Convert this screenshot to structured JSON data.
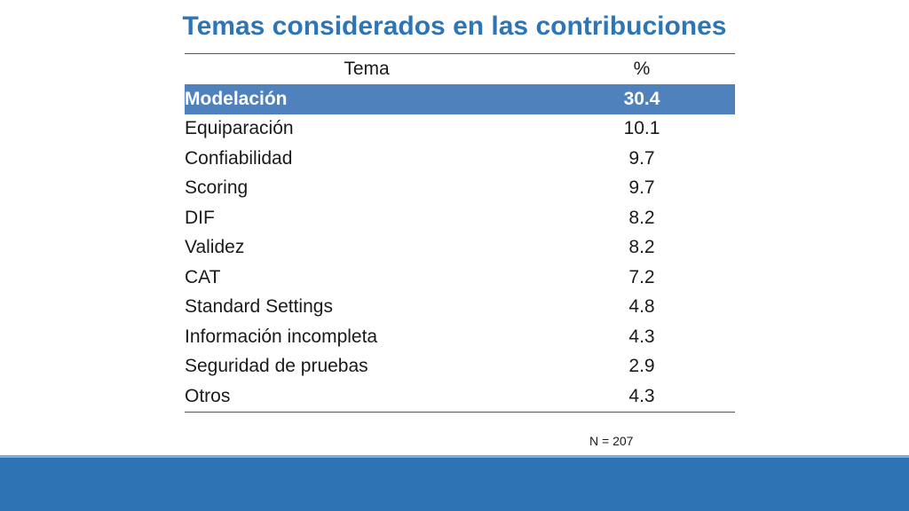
{
  "title": "Temas considerados en las contribuciones",
  "table": {
    "headers": {
      "tema": "Tema",
      "pct": "%"
    },
    "rows": [
      {
        "tema": "Modelación",
        "pct": "30.4"
      },
      {
        "tema": "Equiparación",
        "pct": "10.1"
      },
      {
        "tema": "Confiabilidad",
        "pct": "9.7"
      },
      {
        "tema": "Scoring",
        "pct": "9.7"
      },
      {
        "tema": "DIF",
        "pct": "8.2"
      },
      {
        "tema": "Validez",
        "pct": "8.2"
      },
      {
        "tema": "CAT",
        "pct": "7.2"
      },
      {
        "tema": "Standard Settings",
        "pct": "4.8"
      },
      {
        "tema": "Información incompleta",
        "pct": "4.3"
      },
      {
        "tema": "Seguridad de pruebas",
        "pct": "2.9"
      },
      {
        "tema": "Otros",
        "pct": "4.3"
      }
    ]
  },
  "note": "N = 207",
  "colors": {
    "title": "#2e75b6",
    "highlight_row": "#4f81bd",
    "footer_bar": "#2e74b5"
  }
}
